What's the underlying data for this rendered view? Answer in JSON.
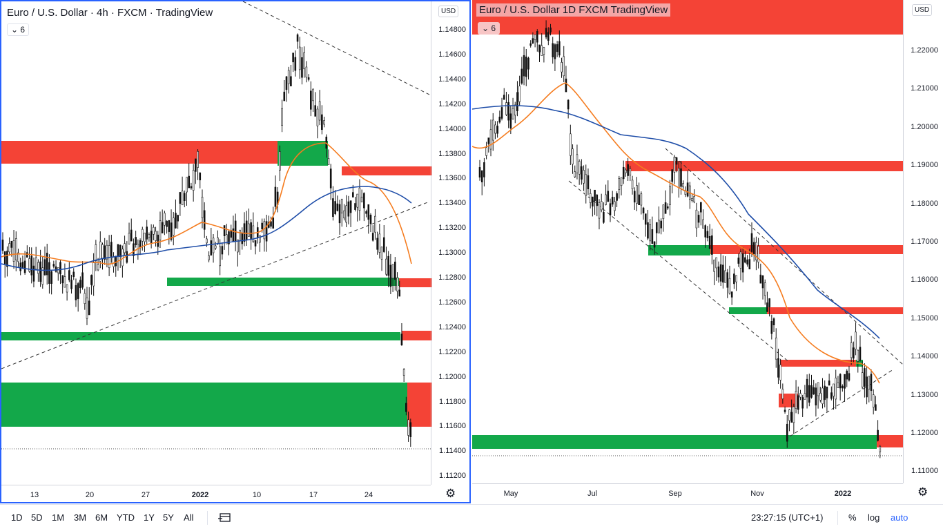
{
  "pane1": {
    "title": "Euro / U.S. Dollar · 4h · FXCM · TradingView",
    "indicator_badge": "⌄ 6",
    "currency": "USD",
    "price_ticks": [
      "1.14800",
      "1.14600",
      "1.14400",
      "1.14200",
      "1.14000",
      "1.13800",
      "1.13600",
      "1.13400",
      "1.13200",
      "1.13000",
      "1.12800",
      "1.12600",
      "1.12400",
      "1.12200",
      "1.12000",
      "1.11800",
      "1.11600",
      "1.11400",
      "1.11200"
    ],
    "time_ticks": [
      "13",
      "20",
      "27",
      "2022",
      "10",
      "17",
      "24"
    ],
    "bold_tick": "2022"
  },
  "pane2": {
    "title": "Euro / U.S. Dollar  1D  FXCM  TradingView",
    "indicator_badge": "⌄ 6",
    "currency": "USD",
    "price_ticks": [
      "1.22000",
      "1.21000",
      "1.20000",
      "1.19000",
      "1.18000",
      "1.17000",
      "1.16000",
      "1.15000",
      "1.14000",
      "1.13000",
      "1.12000",
      "1.11000"
    ],
    "time_ticks": [
      "May",
      "Jul",
      "Sep",
      "Nov",
      "2022"
    ],
    "bold_tick": "2022"
  },
  "bottom_bar": {
    "ranges": [
      "1D",
      "5D",
      "1M",
      "3M",
      "6M",
      "YTD",
      "1Y",
      "5Y",
      "All"
    ],
    "clock": "23:27:15 (UTC+1)",
    "percent": "%",
    "log": "log",
    "auto": "auto"
  },
  "colors": {
    "bull_zone": "#13a84a",
    "bear_zone": "#f44336",
    "ma_orange": "#f57c1f",
    "ma_blue": "#1e4da8",
    "accent": "#2962ff"
  },
  "icons": {
    "settings": "gear-icon",
    "compare": "compare-icon"
  }
}
